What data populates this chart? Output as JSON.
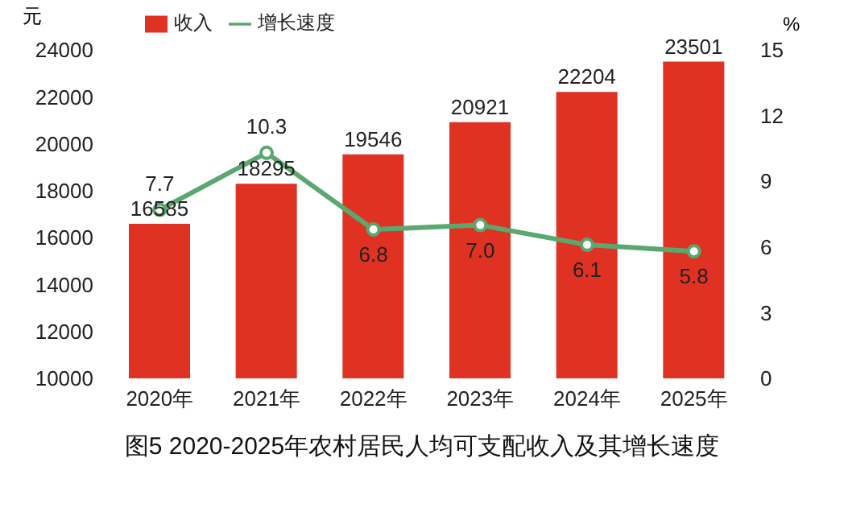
{
  "chart_data": {
    "type": "bar",
    "title": "图5  2020-2025年农村居民人均可支配收入及其增长速度",
    "ylabel": "元",
    "y2label": "%",
    "categories": [
      "2020年",
      "2021年",
      "2022年",
      "2023年",
      "2024年",
      "2025年"
    ],
    "series": [
      {
        "name": "收入",
        "color": "#e03222",
        "values": [
          16585,
          18295,
          19546,
          20921,
          22204,
          23501
        ]
      },
      {
        "name": "增长速度",
        "type": "line",
        "axis": "y2",
        "color": "#5aa870",
        "values": [
          7.7,
          10.3,
          6.8,
          7.0,
          6.1,
          5.8
        ],
        "value_labels": [
          "7.7",
          "10.3",
          "6.8",
          "7.0",
          "6.1",
          "5.8"
        ]
      }
    ],
    "ylim": [
      10000,
      24000
    ],
    "yticks": [
      10000,
      12000,
      14000,
      16000,
      18000,
      20000,
      22000,
      24000
    ],
    "y2lim": [
      0,
      15
    ],
    "y2ticks": [
      0,
      3,
      6,
      9,
      12,
      15
    ],
    "data_labels": true,
    "legend": "top",
    "marker": "circle"
  }
}
